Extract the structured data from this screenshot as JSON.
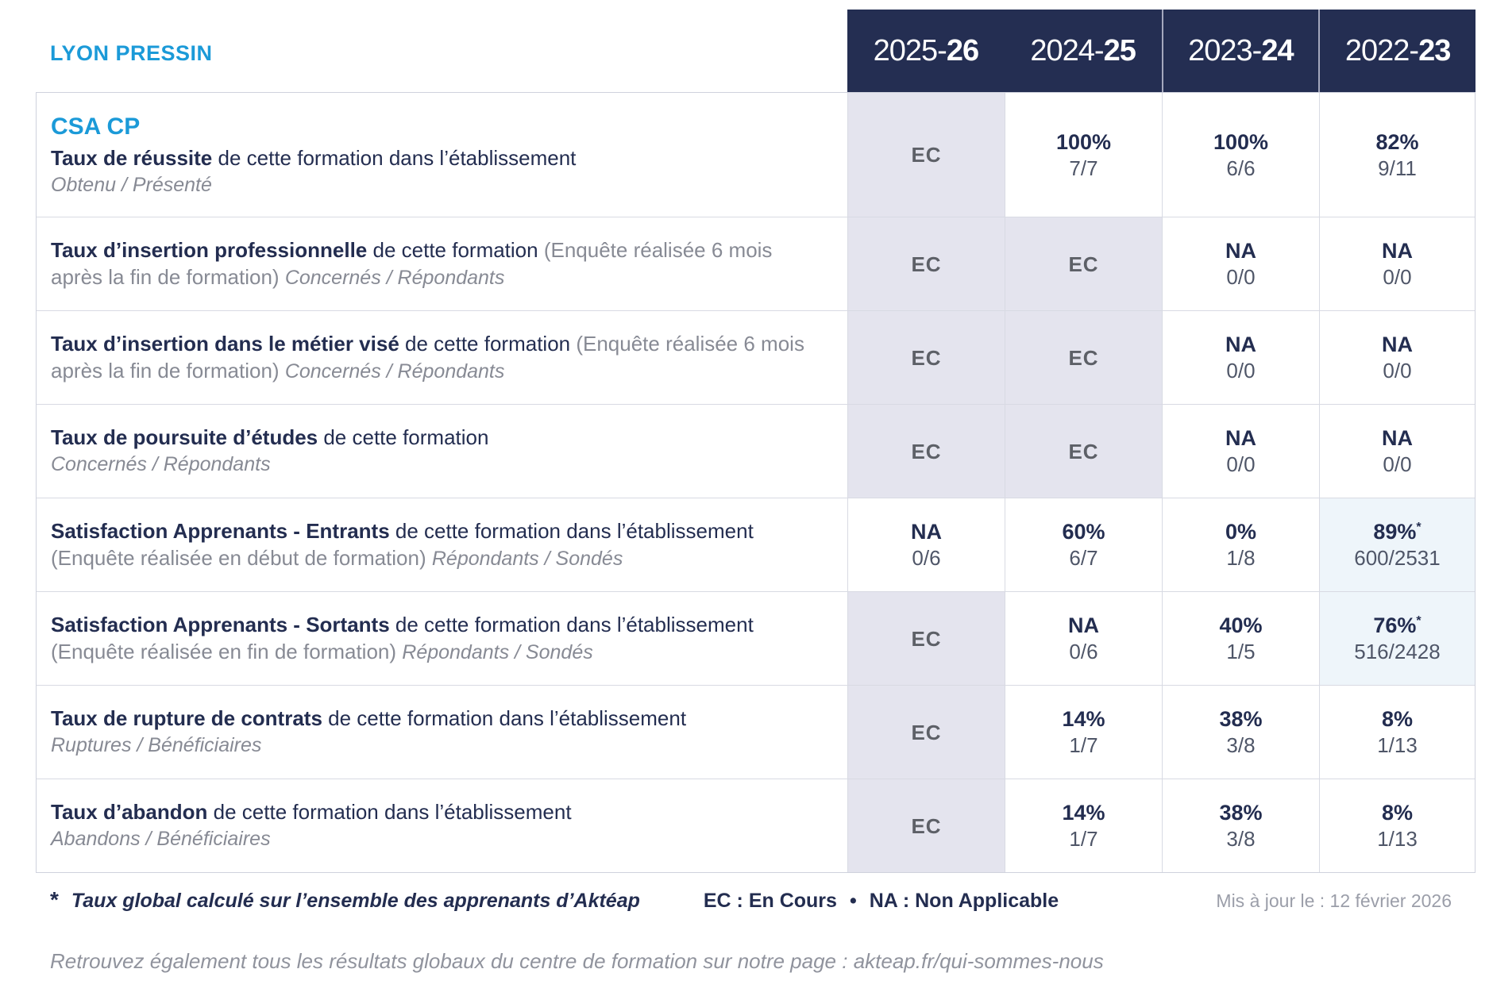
{
  "brand": "LYON PRESSIN",
  "program": "CSA CP",
  "header": {
    "years": [
      {
        "prefix": "2025-",
        "bold": "26"
      },
      {
        "prefix": "2024-",
        "bold": "25"
      },
      {
        "prefix": "2023-",
        "bold": "24"
      },
      {
        "prefix": "2022-",
        "bold": "23"
      }
    ]
  },
  "rows": [
    {
      "title": "Taux de réussite",
      "text": " de cette formation dans l’établissement",
      "sub_block": "Obtenu / Présenté",
      "cells": [
        {
          "value": "EC"
        },
        {
          "value": "100%",
          "fraction": "7/7"
        },
        {
          "value": "100%",
          "fraction": "6/6"
        },
        {
          "value": "82%",
          "fraction": "9/11"
        }
      ]
    },
    {
      "title": "Taux d’insertion professionnelle",
      "text": " de cette formation ",
      "paren": "(Enquête réalisée 6 mois après la fin de formation) ",
      "sub_inline": "Concernés / Répondants",
      "cells": [
        {
          "value": "EC"
        },
        {
          "value": "EC"
        },
        {
          "value": "NA",
          "fraction": "0/0"
        },
        {
          "value": "NA",
          "fraction": "0/0"
        }
      ]
    },
    {
      "title": "Taux d’insertion dans le métier visé",
      "text": " de cette formation ",
      "paren": "(Enquête réalisée 6 mois après la fin de formation) ",
      "sub_inline": "Concernés / Répondants",
      "cells": [
        {
          "value": "EC"
        },
        {
          "value": "EC"
        },
        {
          "value": "NA",
          "fraction": "0/0"
        },
        {
          "value": "NA",
          "fraction": "0/0"
        }
      ]
    },
    {
      "title": "Taux de poursuite d’études",
      "text": " de cette formation",
      "sub_block": "Concernés / Répondants",
      "cells": [
        {
          "value": "EC"
        },
        {
          "value": "EC"
        },
        {
          "value": "NA",
          "fraction": "0/0"
        },
        {
          "value": "NA",
          "fraction": "0/0"
        }
      ]
    },
    {
      "title": "Satisfaction Apprenants - Entrants",
      "text": " de cette formation dans l’établissement ",
      "paren": "(Enquête réalisée en début de formation) ",
      "sub_inline": "Répondants / Sondés",
      "cells": [
        {
          "value": "NA",
          "fraction": "0/6"
        },
        {
          "value": "60%",
          "fraction": "6/7"
        },
        {
          "value": "0%",
          "fraction": "1/8"
        },
        {
          "value": "89%",
          "sup": "*",
          "fraction": "600/2531"
        }
      ]
    },
    {
      "title": "Satisfaction Apprenants - Sortants",
      "text": " de cette formation dans l’établissement ",
      "paren": "(Enquête réalisée en fin de formation) ",
      "sub_inline": "Répondants / Sondés",
      "cells": [
        {
          "value": "EC"
        },
        {
          "value": "NA",
          "fraction": "0/6"
        },
        {
          "value": "40%",
          "fraction": "1/5"
        },
        {
          "value": "76%",
          "sup": "*",
          "fraction": "516/2428"
        }
      ]
    },
    {
      "title": "Taux de rupture de contrats",
      "text": " de cette formation dans l’établissement",
      "sub_block": "Ruptures / Bénéficiaires",
      "cells": [
        {
          "value": "EC"
        },
        {
          "value": "14%",
          "fraction": "1/7"
        },
        {
          "value": "38%",
          "fraction": "3/8"
        },
        {
          "value": "8%",
          "fraction": "1/13"
        }
      ]
    },
    {
      "title": "Taux d’abandon",
      "text": " de cette formation dans l’établissement",
      "sub_block": "Abandons / Bénéficiaires",
      "cells": [
        {
          "value": "EC"
        },
        {
          "value": "14%",
          "fraction": "1/7"
        },
        {
          "value": "38%",
          "fraction": "3/8"
        },
        {
          "value": "8%",
          "fraction": "1/13"
        }
      ]
    }
  ],
  "footer": {
    "asterisk": "*",
    "note": "Taux global calculé sur l’ensemble des apprenants d’Aktéap",
    "legend_ec": "EC : En Cours",
    "legend_sep": "•",
    "legend_na": "NA : Non Applicable",
    "updated": "Mis à jour le : 12 février 2026",
    "bottom_line": "Retrouvez également tous les résultats globaux du centre de formation sur notre page : akteap.fr/qui-sommes-nous"
  },
  "colors": {
    "navy": "#232d50",
    "cyan": "#1b9ad8",
    "gray_text": "#878a94",
    "ec_cell_bg": "#e4e4ee",
    "highlight_cell_bg": "#eef5fa",
    "header_bg": "#242e52"
  }
}
